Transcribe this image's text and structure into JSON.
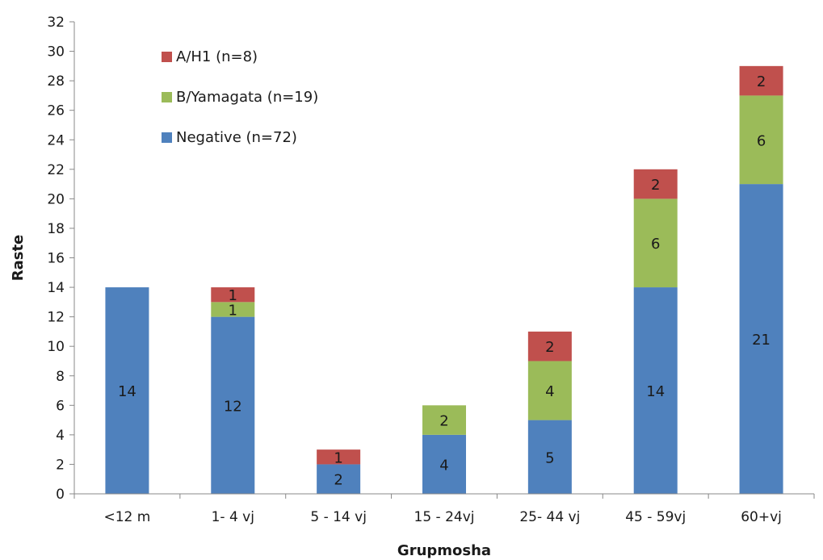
{
  "chart_data": {
    "type": "bar",
    "stacked": true,
    "title": "",
    "xlabel": "Grupmosha",
    "ylabel": "Raste",
    "ylim": [
      0,
      32
    ],
    "ytick_step": 2,
    "grid": false,
    "legend_position": "top-left",
    "categories": [
      "<12 m",
      "1- 4 vj",
      "5 - 14 vj",
      "15 - 24vj",
      "25- 44 vj",
      "45 - 59vj",
      "60+vj"
    ],
    "series": [
      {
        "name": "Negative (n=72)",
        "color": "#4f81bd",
        "values": [
          14,
          12,
          2,
          4,
          5,
          14,
          21
        ]
      },
      {
        "name": "B/Yamagata (n=19)",
        "color": "#9bbb59",
        "values": [
          0,
          1,
          0,
          2,
          4,
          6,
          6
        ]
      },
      {
        "name": "A/H1 (n=8)",
        "color": "#c0504d",
        "values": [
          0,
          1,
          1,
          0,
          2,
          2,
          2
        ]
      }
    ],
    "legend_order": [
      2,
      1,
      0
    ]
  }
}
